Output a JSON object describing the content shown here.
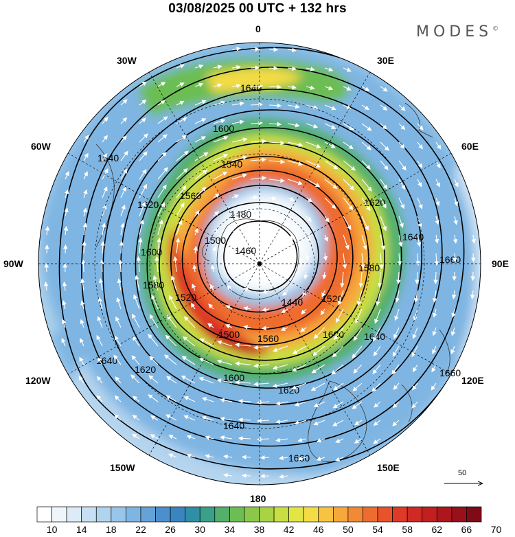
{
  "title": "03/08/2025  00 UTC  + 132 hrs",
  "brand": "MODES",
  "brand_mark": "©",
  "longitude_labels": {
    "lon_0": "0",
    "lon_30e": "30E",
    "lon_60e": "60E",
    "lon_90e": "90E",
    "lon_120e": "120E",
    "lon_150e": "150E",
    "lon_180": "180",
    "lon_150w": "150W",
    "lon_120w": "120W",
    "lon_90w": "90W",
    "lon_60w": "60W",
    "lon_30w": "30W"
  },
  "contour_levels": [
    "1440",
    "1460",
    "1480",
    "1500",
    "1520",
    "1540",
    "1560",
    "1580",
    "1600",
    "1620",
    "1640",
    "1660"
  ],
  "reference_vector": {
    "label": "50"
  },
  "colorbar": {
    "ticks": [
      "10",
      "14",
      "18",
      "22",
      "26",
      "30",
      "34",
      "38",
      "42",
      "46",
      "50",
      "54",
      "58",
      "62",
      "66",
      "70"
    ],
    "colors": [
      "#ffffff",
      "#eef5fb",
      "#dcebf7",
      "#c8e0f3",
      "#b0d3ee",
      "#98c5e9",
      "#7fb5e2",
      "#64a2d8",
      "#4b90cc",
      "#3a85c0",
      "#2f8fa6",
      "#3aa088",
      "#52b06a",
      "#6cbd52",
      "#8bc84a",
      "#a8d344",
      "#c7df42",
      "#e3e545",
      "#f4dc45",
      "#f7c441",
      "#f6a83c",
      "#f28a35",
      "#ee6c2f",
      "#e8532b",
      "#de3a27",
      "#d12a24",
      "#c11f20",
      "#ae161d",
      "#98101a",
      "#7f0b16"
    ]
  },
  "colors": {
    "land_outline": "#333333",
    "contour": "#000000",
    "grid": "#000000",
    "vector": "#ffffff"
  }
}
